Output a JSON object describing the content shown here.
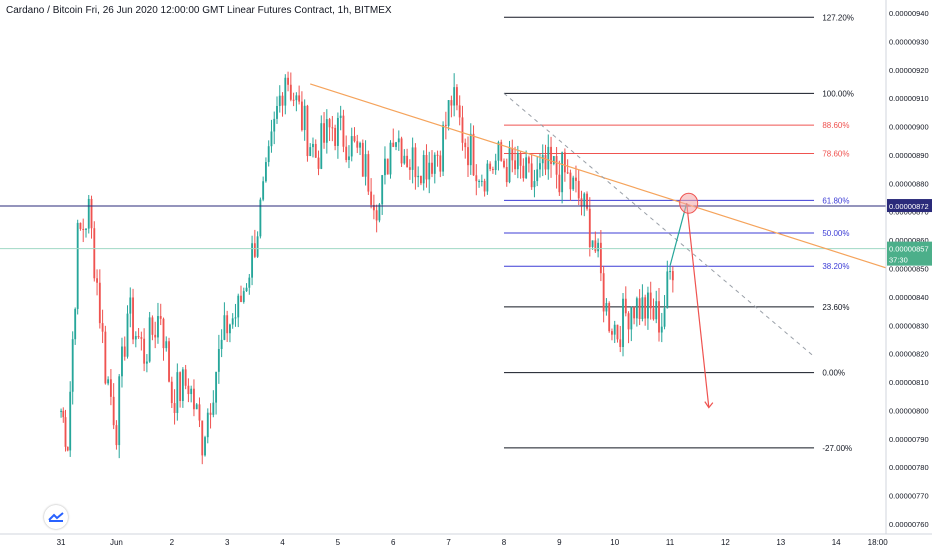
{
  "header": {
    "title": "Cardano / Bitcoin Fri, 26 Jun 2020 12:00:00 GMT Linear Futures Contract, 1h, BITMEX"
  },
  "price_badges": {
    "current": "0.00000872",
    "last": "0.00000857",
    "countdown": "37:30"
  },
  "colors": {
    "up": "#26a69a",
    "down": "#ef5350",
    "trendline": "#f5a35b",
    "fib_black": "#131722",
    "fib_red": "#ef5350",
    "fib_blue": "#3d3dd6",
    "current_line": "#2a2a7a",
    "last_line": "#9fd8c5",
    "projection_up": "#26a69a",
    "projection_down": "#ef5350",
    "ellipse": "#f4a5a5",
    "diagonal": "#9aa0a8"
  },
  "chart_data": {
    "type": "candlestick",
    "title": "Cardano / Bitcoin Fri, 26 Jun 2020 12:00:00 GMT Linear Futures Contract, 1h, BITMEX",
    "y_axis": {
      "min": 7.6e-06,
      "max": 9.4e-06,
      "ticks": [
        "0.00000940",
        "0.00000930",
        "0.00000920",
        "0.00000910",
        "0.00000900",
        "0.00000890",
        "0.00000880",
        "0.00000870",
        "0.00000860",
        "0.00000850",
        "0.00000840",
        "0.00000830",
        "0.00000820",
        "0.00000810",
        "0.00000800",
        "0.00000790",
        "0.00000780",
        "0.00000770",
        "0.00000760"
      ]
    },
    "x_axis": {
      "unit": "day",
      "min": 0.7,
      "max": 15.6,
      "ticks": [
        {
          "label": "31",
          "day": 0
        },
        {
          "label": "Jun",
          "day": 1
        },
        {
          "label": "2",
          "day": 2
        },
        {
          "label": "3",
          "day": 3
        },
        {
          "label": "4",
          "day": 4
        },
        {
          "label": "5",
          "day": 5
        },
        {
          "label": "6",
          "day": 6
        },
        {
          "label": "7",
          "day": 7
        },
        {
          "label": "8",
          "day": 8
        },
        {
          "label": "9",
          "day": 9
        },
        {
          "label": "10",
          "day": 10
        },
        {
          "label": "11",
          "day": 11
        },
        {
          "label": "12",
          "day": 12
        },
        {
          "label": "13",
          "day": 13
        },
        {
          "label": "14",
          "day": 14
        },
        {
          "label": "18:00",
          "day": 14.75
        }
      ]
    },
    "candles_anchor": [
      {
        "day": 0.0,
        "close": 8e-06
      },
      {
        "day": 0.12,
        "close": 7.9e-06
      },
      {
        "day": 0.3,
        "close": 8.6e-06
      },
      {
        "day": 0.5,
        "close": 8.7e-06
      },
      {
        "day": 0.65,
        "close": 8.45e-06
      },
      {
        "day": 0.8,
        "close": 8.15e-06
      },
      {
        "day": 1.0,
        "close": 7.95e-06
      },
      {
        "day": 1.2,
        "close": 8.35e-06
      },
      {
        "day": 1.5,
        "close": 8.2e-06
      },
      {
        "day": 1.8,
        "close": 8.35e-06
      },
      {
        "day": 2.0,
        "close": 8.05e-06
      },
      {
        "day": 2.3,
        "close": 8.1e-06
      },
      {
        "day": 2.55,
        "close": 7.9e-06
      },
      {
        "day": 2.8,
        "close": 8.15e-06
      },
      {
        "day": 3.0,
        "close": 8.3e-06
      },
      {
        "day": 3.2,
        "close": 8.35e-06
      },
      {
        "day": 3.45,
        "close": 8.55e-06
      },
      {
        "day": 3.7,
        "close": 8.8e-06
      },
      {
        "day": 3.9,
        "close": 9.05e-06
      },
      {
        "day": 4.05,
        "close": 9.2e-06
      },
      {
        "day": 4.3,
        "close": 9.05e-06
      },
      {
        "day": 4.6,
        "close": 8.9e-06
      },
      {
        "day": 4.9,
        "close": 9e-06
      },
      {
        "day": 5.2,
        "close": 8.95e-06
      },
      {
        "day": 5.5,
        "close": 8.85e-06
      },
      {
        "day": 5.75,
        "close": 8.72e-06
      },
      {
        "day": 6.0,
        "close": 9e-06
      },
      {
        "day": 6.3,
        "close": 8.88e-06
      },
      {
        "day": 6.6,
        "close": 8.88e-06
      },
      {
        "day": 6.85,
        "close": 8.92e-06
      },
      {
        "day": 7.05,
        "close": 9.1e-06
      },
      {
        "day": 7.3,
        "close": 8.95e-06
      },
      {
        "day": 7.6,
        "close": 8.84e-06
      },
      {
        "day": 7.9,
        "close": 8.88e-06
      },
      {
        "day": 8.2,
        "close": 8.85e-06
      },
      {
        "day": 8.5,
        "close": 8.8e-06
      },
      {
        "day": 8.8,
        "close": 8.85e-06
      },
      {
        "day": 9.1,
        "close": 8.83e-06
      },
      {
        "day": 9.4,
        "close": 8.73e-06
      },
      {
        "day": 9.6,
        "close": 8.62e-06
      },
      {
        "day": 9.85,
        "close": 8.35e-06
      },
      {
        "day": 10.05,
        "close": 8.28e-06
      },
      {
        "day": 10.3,
        "close": 8.38e-06
      },
      {
        "day": 10.6,
        "close": 8.35e-06
      },
      {
        "day": 10.85,
        "close": 8.32e-06
      },
      {
        "day": 11.0,
        "close": 8.48e-06
      },
      {
        "day": 11.1,
        "close": 8.57e-06
      }
    ],
    "fib_retracement": {
      "x_start_day": 8.0,
      "x_end_day": 13.6,
      "label_day": 13.75,
      "levels": [
        {
          "label": "127.20%",
          "price": 9.385e-06,
          "color": "fib_black"
        },
        {
          "label": "100.00%",
          "price": 9.117e-06,
          "color": "fib_black"
        },
        {
          "label": "88.60%",
          "price": 9.005e-06,
          "color": "fib_red"
        },
        {
          "label": "78.60%",
          "price": 8.905e-06,
          "color": "fib_red"
        },
        {
          "label": "61.80%",
          "price": 8.74e-06,
          "color": "fib_blue"
        },
        {
          "label": "50.00%",
          "price": 8.625e-06,
          "color": "fib_blue"
        },
        {
          "label": "38.20%",
          "price": 8.508e-06,
          "color": "fib_blue"
        },
        {
          "label": "23.60%",
          "price": 8.365e-06,
          "color": "fib_black"
        },
        {
          "label": "0.00%",
          "price": 8.133e-06,
          "color": "fib_black"
        },
        {
          "label": "-27.00%",
          "price": 7.868e-06,
          "color": "fib_black"
        }
      ]
    },
    "trendline": {
      "from": {
        "day": 4.5,
        "price": 9.15e-06
      },
      "to": {
        "day": 15.9,
        "price": 8.44e-06
      }
    },
    "diagonal_dashed": {
      "from": {
        "day": 8.0,
        "price": 9.117e-06
      },
      "to": {
        "day": 13.6,
        "price": 8.19e-06
      }
    },
    "projection_up": {
      "from": {
        "day": 11.0,
        "price": 8.51e-06
      },
      "to": {
        "day": 11.3,
        "price": 8.73e-06
      }
    },
    "projection_down": {
      "from": {
        "day": 11.3,
        "price": 8.73e-06
      },
      "to": {
        "day": 11.7,
        "price": 8.01e-06
      }
    },
    "current_price": 8.72e-06,
    "last_price": 8.57e-06
  }
}
